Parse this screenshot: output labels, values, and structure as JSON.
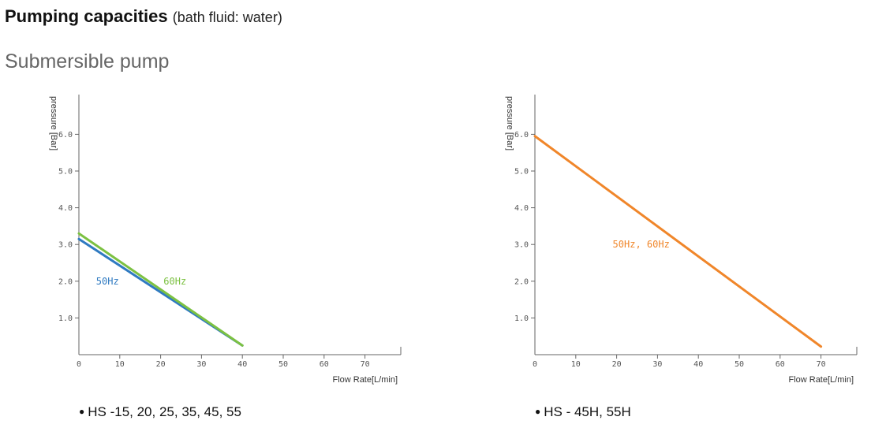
{
  "header": {
    "title": "Pumping capacities",
    "title_note": "(bath fluid: water)",
    "subtitle": "Submersible pump"
  },
  "chart_data": [
    {
      "type": "line",
      "xlabel": "Flow Rate[L/min]",
      "ylabel": "pressure [Bar]",
      "xlim": [
        0,
        80
      ],
      "ylim": [
        0,
        7
      ],
      "xticks": [
        "0",
        "10",
        "20",
        "30",
        "40",
        "50",
        "60",
        "70"
      ],
      "yticks": [
        "1.0",
        "2.0",
        "3.0",
        "4.0",
        "5.0",
        "6.0"
      ],
      "series": [
        {
          "name": "50Hz",
          "color": "#2f7ac1",
          "points": [
            [
              0,
              3.15
            ],
            [
              40,
              0.25
            ]
          ],
          "label_at": [
            7,
            2.0
          ]
        },
        {
          "name": "60Hz",
          "color": "#7cc142",
          "points": [
            [
              0,
              3.3
            ],
            [
              40,
              0.25
            ]
          ],
          "label_at": [
            23.5,
            2.0
          ]
        }
      ],
      "caption": "HS -15, 20, 25, 35, 45, 55"
    },
    {
      "type": "line",
      "xlabel": "Flow Rate[L/min]",
      "ylabel": "pressure [Bar]",
      "xlim": [
        0,
        80
      ],
      "ylim": [
        0,
        7
      ],
      "xticks": [
        "0",
        "10",
        "20",
        "30",
        "40",
        "50",
        "60",
        "70"
      ],
      "yticks": [
        "1.0",
        "2.0",
        "3.0",
        "4.0",
        "5.0",
        "6.0"
      ],
      "series": [
        {
          "name": "50Hz, 60Hz",
          "color": "#f0862a",
          "points": [
            [
              0,
              5.95
            ],
            [
              70,
              0.22
            ]
          ],
          "label_at": [
            26,
            3.0
          ]
        }
      ],
      "caption": "HS - 45H, 55H"
    }
  ]
}
